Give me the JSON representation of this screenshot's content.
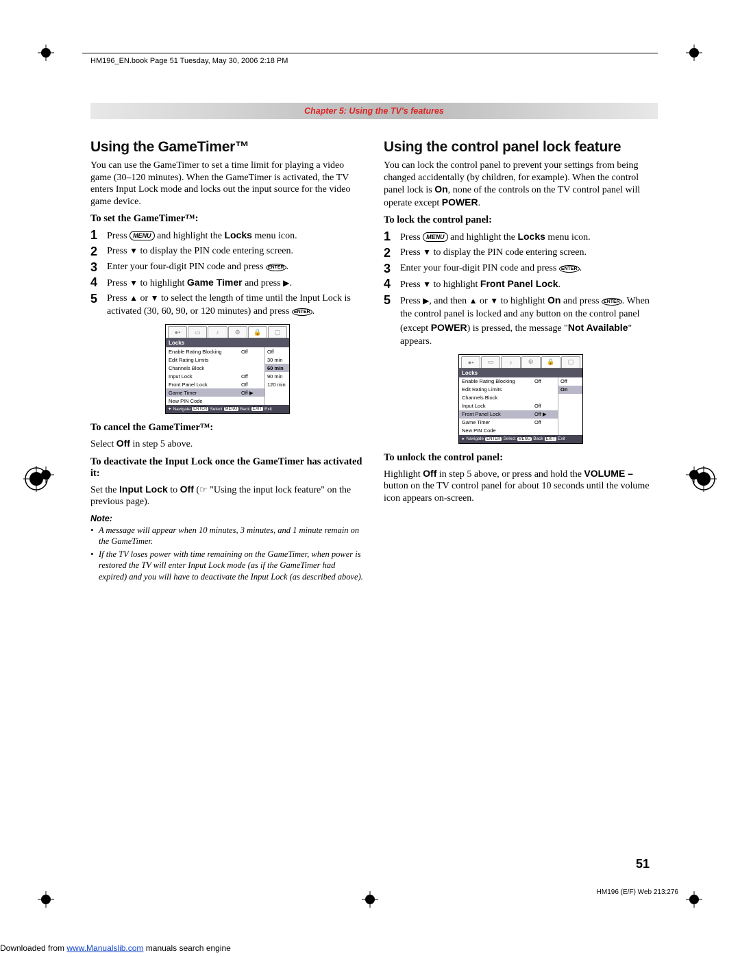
{
  "header": {
    "book_line": "HM196_EN.book  Page 51  Tuesday, May 30, 2006  2:18 PM"
  },
  "chapter_bar": "Chapter 5: Using the TV's features",
  "left": {
    "title": "Using the GameTimer™",
    "intro": "You can use the GameTimer to set a time limit for playing a video game (30–120 minutes). When the GameTimer is activated, the TV enters Input Lock mode and locks out the input source for the video game device.",
    "to_set": "To set the GameTimer™:",
    "steps": [
      {
        "n": "1",
        "t": "Press MENU and highlight the Locks menu icon."
      },
      {
        "n": "2",
        "t": "Press ▼ to display the PIN code entering screen."
      },
      {
        "n": "3",
        "t": "Enter your four-digit PIN code and press ENTER."
      },
      {
        "n": "4",
        "t": "Press ▼ to highlight Game Timer and press ▶."
      },
      {
        "n": "5",
        "t": "Press ▲ or ▼ to select the length of time until the Input Lock is activated (30, 60, 90, or 120 minutes) and press ENTER."
      }
    ],
    "menu": {
      "title": "Locks",
      "rows": [
        {
          "label": "Enable Rating Blocking",
          "val": "Off"
        },
        {
          "label": "Edit Rating Limits",
          "val": ""
        },
        {
          "label": "Channels Block",
          "val": ""
        },
        {
          "label": "Input Lock",
          "val": "Off"
        },
        {
          "label": "Front Panel Lock",
          "val": "Off"
        },
        {
          "label": "Game Timer",
          "val": "Off",
          "hl": true,
          "arrow": "▶"
        },
        {
          "label": "New PIN Code",
          "val": ""
        }
      ],
      "side": [
        "Off",
        "30 min",
        "60 min",
        "90 min",
        "120 min"
      ],
      "side_hl_index": 2,
      "nav": "Navigate  ENTER Select  MENU Back  EXIT Exit"
    },
    "to_cancel_h": "To cancel the GameTimer™:",
    "to_cancel_b": "Select Off in step 5 above.",
    "to_deact_h": "To deactivate the Input Lock once the GameTimer has activated it:",
    "to_deact_b": "Set the Input Lock to Off (☞ \"Using the input lock feature\" on the previous page).",
    "note_label": "Note:",
    "notes": [
      "A message will appear when 10 minutes, 3 minutes, and 1 minute remain on the GameTimer.",
      "If the TV loses power with time remaining on the GameTimer, when power is restored the TV will enter Input Lock mode (as if the GameTimer had expired) and you will have to deactivate the Input Lock (as described above)."
    ]
  },
  "right": {
    "title": "Using the control panel lock feature",
    "intro": "You can lock the control panel to prevent your settings from being changed accidentally (by children, for example). When the control panel lock is On, none of the controls on the TV control panel will operate except POWER.",
    "to_lock": "To lock the control panel:",
    "steps": [
      {
        "n": "1",
        "t": "Press MENU and highlight the Locks menu icon."
      },
      {
        "n": "2",
        "t": "Press ▼ to display the PIN code entering screen."
      },
      {
        "n": "3",
        "t": "Enter your four-digit PIN code and press ENTER."
      },
      {
        "n": "4",
        "t": "Press ▼ to highlight Front Panel Lock."
      },
      {
        "n": "5",
        "t": "Press ▶, and then ▲ or ▼ to highlight On and press ENTER. When the control panel is locked and any button on the control panel (except POWER) is pressed, the message \"Not Available\" appears."
      }
    ],
    "menu": {
      "title": "Locks",
      "rows": [
        {
          "label": "Enable Rating Blocking",
          "val": "Off"
        },
        {
          "label": "Edit Rating Limits",
          "val": ""
        },
        {
          "label": "Channels Block",
          "val": ""
        },
        {
          "label": "Input Lock",
          "val": "Off"
        },
        {
          "label": "Front Panel Lock",
          "val": "Off",
          "hl": true,
          "arrow": "▶"
        },
        {
          "label": "Game Timer",
          "val": "Off"
        },
        {
          "label": "New PIN Code",
          "val": ""
        }
      ],
      "side": [
        "Off",
        "On"
      ],
      "side_hl_index": 1,
      "nav": "Navigate  ENTER Select  MENU Back  EXIT Exit"
    },
    "to_unlock_h": "To unlock the control panel:",
    "to_unlock_b": "Highlight Off in step 5 above, or press and hold the VOLUME – button on the TV control panel for about 10 seconds until the volume icon appears on-screen."
  },
  "page_number": "51",
  "footer_code": "HM196 (E/F) Web 213:276",
  "download": {
    "prefix": "Downloaded from ",
    "link": "www.Manualslib.com",
    "suffix": " manuals search engine"
  },
  "style": {
    "accent_red": "#d22",
    "chapter_bg_mid": "#b8b8b8",
    "chapter_bg_edge": "#e8e8e8",
    "menu_header_bg": "#556",
    "menu_hl_bg": "#b8b8c8"
  }
}
